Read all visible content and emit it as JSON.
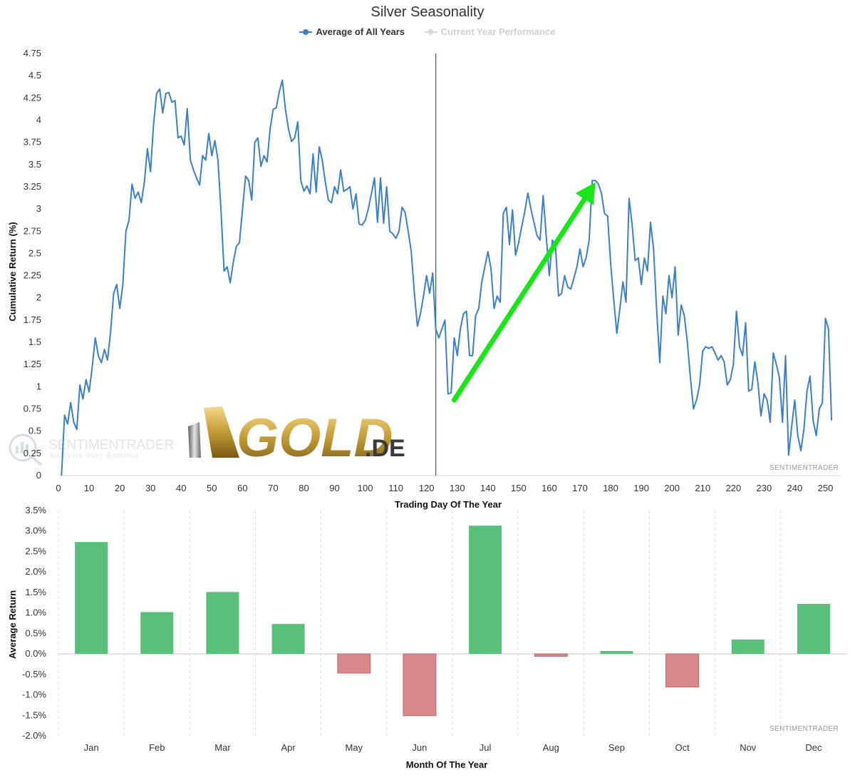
{
  "title": "Silver Seasonality",
  "legend": {
    "average": "Average of All Years",
    "current": "Current Year Performance"
  },
  "colors": {
    "line": "#3a7fc8",
    "marker": "#2e7d32",
    "arrow": "#19e619",
    "positive": "#5abf78",
    "negative": "#d98889"
  },
  "watermarks": {
    "sentimentrader_logo": "SENTIMENTRADER",
    "sentimentrader_tagline": "Analysis over Emotion",
    "gold_brand": "GOLD",
    "gold_tld": ".DE",
    "credit_top": "SENTIMENTRADER",
    "credit_bottom": "SENTIMENTRADER"
  },
  "chart_data": [
    {
      "type": "line",
      "title": "Silver Seasonality",
      "xlabel": "Trading Day Of The Year",
      "ylabel": "Cumulative Return (%)",
      "xlim": [
        0,
        255
      ],
      "ylim": [
        0,
        4.75
      ],
      "x_ticks": [
        0,
        10,
        20,
        30,
        40,
        50,
        60,
        70,
        80,
        90,
        100,
        110,
        120,
        130,
        140,
        150,
        160,
        170,
        180,
        190,
        200,
        210,
        220,
        230,
        240,
        250
      ],
      "y_ticks": [
        0,
        0.25,
        0.5,
        0.75,
        1,
        1.25,
        1.5,
        1.75,
        2,
        2.25,
        2.5,
        2.75,
        3,
        3.25,
        3.5,
        3.75,
        4,
        4.25,
        4.5,
        4.75
      ],
      "vertical_marker_x": 123,
      "arrow_annotation": {
        "from": [
          129,
          0.85
        ],
        "to": [
          175,
          3.3
        ]
      },
      "series": [
        {
          "name": "Average of All Years",
          "points": [
            [
              1,
              0.0
            ],
            [
              2,
              0.68
            ],
            [
              3,
              0.58
            ],
            [
              4,
              0.82
            ],
            [
              5,
              0.6
            ],
            [
              6,
              0.52
            ],
            [
              7,
              1.02
            ],
            [
              8,
              0.86
            ],
            [
              9,
              1.08
            ],
            [
              10,
              0.94
            ],
            [
              11,
              1.22
            ],
            [
              12,
              1.55
            ],
            [
              13,
              1.35
            ],
            [
              14,
              1.27
            ],
            [
              15,
              1.42
            ],
            [
              16,
              1.3
            ],
            [
              17,
              1.62
            ],
            [
              18,
              2.05
            ],
            [
              19,
              2.15
            ],
            [
              20,
              1.88
            ],
            [
              21,
              2.15
            ],
            [
              22,
              2.75
            ],
            [
              23,
              2.87
            ],
            [
              24,
              3.28
            ],
            [
              25,
              3.12
            ],
            [
              26,
              3.19
            ],
            [
              27,
              3.07
            ],
            [
              28,
              3.3
            ],
            [
              29,
              3.68
            ],
            [
              30,
              3.42
            ],
            [
              31,
              3.95
            ],
            [
              32,
              4.3
            ],
            [
              33,
              4.35
            ],
            [
              34,
              4.08
            ],
            [
              35,
              4.3
            ],
            [
              36,
              4.31
            ],
            [
              37,
              4.2
            ],
            [
              38,
              4.22
            ],
            [
              39,
              3.8
            ],
            [
              40,
              3.82
            ],
            [
              41,
              3.72
            ],
            [
              42,
              4.13
            ],
            [
              43,
              3.55
            ],
            [
              44,
              3.44
            ],
            [
              45,
              3.35
            ],
            [
              46,
              3.27
            ],
            [
              47,
              3.6
            ],
            [
              48,
              3.55
            ],
            [
              49,
              3.85
            ],
            [
              50,
              3.6
            ],
            [
              51,
              3.77
            ],
            [
              52,
              3.55
            ],
            [
              53,
              2.98
            ],
            [
              54,
              2.3
            ],
            [
              55,
              2.35
            ],
            [
              56,
              2.17
            ],
            [
              57,
              2.4
            ],
            [
              58,
              2.58
            ],
            [
              59,
              2.62
            ],
            [
              60,
              3.0
            ],
            [
              61,
              3.37
            ],
            [
              62,
              3.32
            ],
            [
              63,
              3.1
            ],
            [
              64,
              3.75
            ],
            [
              65,
              3.8
            ],
            [
              66,
              3.48
            ],
            [
              67,
              3.6
            ],
            [
              68,
              3.53
            ],
            [
              69,
              3.9
            ],
            [
              70,
              4.12
            ],
            [
              71,
              4.14
            ],
            [
              72,
              4.32
            ],
            [
              73,
              4.45
            ],
            [
              74,
              4.12
            ],
            [
              75,
              3.9
            ],
            [
              76,
              3.76
            ],
            [
              77,
              3.8
            ],
            [
              78,
              3.98
            ],
            [
              79,
              3.32
            ],
            [
              80,
              3.2
            ],
            [
              81,
              3.26
            ],
            [
              82,
              3.17
            ],
            [
              83,
              3.62
            ],
            [
              84,
              3.19
            ],
            [
              85,
              3.7
            ],
            [
              86,
              3.55
            ],
            [
              87,
              3.3
            ],
            [
              88,
              3.1
            ],
            [
              89,
              3.07
            ],
            [
              90,
              3.25
            ],
            [
              91,
              3.17
            ],
            [
              92,
              3.44
            ],
            [
              93,
              3.2
            ],
            [
              94,
              3.22
            ],
            [
              95,
              3.25
            ],
            [
              96,
              3.0
            ],
            [
              97,
              3.17
            ],
            [
              98,
              2.83
            ],
            [
              99,
              2.82
            ],
            [
              100,
              2.87
            ],
            [
              101,
              3.0
            ],
            [
              102,
              3.17
            ],
            [
              103,
              3.35
            ],
            [
              104,
              2.85
            ],
            [
              105,
              3.35
            ],
            [
              106,
              2.84
            ],
            [
              107,
              3.25
            ],
            [
              108,
              2.75
            ],
            [
              109,
              2.72
            ],
            [
              110,
              2.67
            ],
            [
              111,
              2.75
            ],
            [
              112,
              3.02
            ],
            [
              113,
              2.96
            ],
            [
              114,
              2.75
            ],
            [
              115,
              2.52
            ],
            [
              116,
              2.06
            ],
            [
              117,
              1.68
            ],
            [
              118,
              1.82
            ],
            [
              119,
              2.02
            ],
            [
              120,
              2.25
            ],
            [
              121,
              2.05
            ],
            [
              122,
              2.28
            ],
            [
              123,
              1.65
            ],
            [
              124,
              1.55
            ],
            [
              125,
              1.65
            ],
            [
              126,
              1.75
            ],
            [
              127,
              0.92
            ],
            [
              128,
              0.93
            ],
            [
              129,
              1.55
            ],
            [
              130,
              1.35
            ],
            [
              131,
              1.65
            ],
            [
              132,
              1.82
            ],
            [
              133,
              1.85
            ],
            [
              134,
              1.35
            ],
            [
              135,
              1.35
            ],
            [
              136,
              1.8
            ],
            [
              137,
              1.88
            ],
            [
              138,
              2.18
            ],
            [
              139,
              2.35
            ],
            [
              140,
              2.52
            ],
            [
              141,
              2.33
            ],
            [
              142,
              1.88
            ],
            [
              143,
              2.02
            ],
            [
              144,
              1.95
            ],
            [
              145,
              2.95
            ],
            [
              146,
              3.02
            ],
            [
              147,
              2.6
            ],
            [
              148,
              2.99
            ],
            [
              149,
              2.48
            ],
            [
              150,
              2.62
            ],
            [
              151,
              2.8
            ],
            [
              152,
              2.97
            ],
            [
              153,
              3.18
            ],
            [
              154,
              3.0
            ],
            [
              155,
              2.85
            ],
            [
              156,
              2.7
            ],
            [
              157,
              2.65
            ],
            [
              158,
              3.15
            ],
            [
              159,
              2.7
            ],
            [
              160,
              2.25
            ],
            [
              161,
              2.65
            ],
            [
              162,
              2.58
            ],
            [
              163,
              2.02
            ],
            [
              164,
              2.05
            ],
            [
              165,
              2.25
            ],
            [
              166,
              2.12
            ],
            [
              167,
              2.1
            ],
            [
              168,
              2.22
            ],
            [
              169,
              2.35
            ],
            [
              170,
              2.55
            ],
            [
              171,
              2.35
            ],
            [
              172,
              2.45
            ],
            [
              173,
              2.65
            ],
            [
              174,
              3.32
            ],
            [
              175,
              3.32
            ],
            [
              176,
              3.28
            ],
            [
              177,
              3.18
            ],
            [
              178,
              2.95
            ],
            [
              179,
              2.92
            ],
            [
              180,
              2.38
            ],
            [
              181,
              1.98
            ],
            [
              182,
              1.6
            ],
            [
              183,
              1.88
            ],
            [
              184,
              2.18
            ],
            [
              185,
              1.95
            ],
            [
              186,
              3.12
            ],
            [
              187,
              2.82
            ],
            [
              188,
              2.42
            ],
            [
              189,
              2.45
            ],
            [
              190,
              2.15
            ],
            [
              191,
              2.45
            ],
            [
              192,
              2.3
            ],
            [
              193,
              2.85
            ],
            [
              194,
              2.55
            ],
            [
              195,
              1.86
            ],
            [
              196,
              1.27
            ],
            [
              197,
              2.02
            ],
            [
              198,
              1.82
            ],
            [
              199,
              2.25
            ],
            [
              200,
              2.0
            ],
            [
              201,
              2.35
            ],
            [
              202,
              1.58
            ],
            [
              203,
              1.92
            ],
            [
              204,
              1.8
            ],
            [
              205,
              1.5
            ],
            [
              206,
              1.1
            ],
            [
              207,
              0.75
            ],
            [
              208,
              0.85
            ],
            [
              209,
              1.02
            ],
            [
              210,
              1.4
            ],
            [
              211,
              1.45
            ],
            [
              212,
              1.43
            ],
            [
              213,
              1.45
            ],
            [
              214,
              1.38
            ],
            [
              215,
              1.3
            ],
            [
              216,
              1.35
            ],
            [
              217,
              1.28
            ],
            [
              218,
              1.02
            ],
            [
              219,
              1.08
            ],
            [
              220,
              1.25
            ],
            [
              221,
              1.85
            ],
            [
              222,
              1.45
            ],
            [
              223,
              1.35
            ],
            [
              224,
              1.72
            ],
            [
              225,
              0.95
            ],
            [
              226,
              0.97
            ],
            [
              227,
              1.28
            ],
            [
              228,
              1.05
            ],
            [
              229,
              0.67
            ],
            [
              230,
              0.92
            ],
            [
              231,
              0.85
            ],
            [
              232,
              0.6
            ],
            [
              233,
              1.38
            ],
            [
              234,
              1.25
            ],
            [
              235,
              1.1
            ],
            [
              236,
              0.6
            ],
            [
              237,
              1.35
            ],
            [
              238,
              0.23
            ],
            [
              239,
              0.55
            ],
            [
              240,
              0.85
            ],
            [
              241,
              0.45
            ],
            [
              242,
              0.28
            ],
            [
              243,
              0.52
            ],
            [
              244,
              0.95
            ],
            [
              245,
              1.12
            ],
            [
              246,
              0.62
            ],
            [
              247,
              0.45
            ],
            [
              248,
              0.75
            ],
            [
              249,
              0.82
            ],
            [
              250,
              1.77
            ],
            [
              251,
              1.65
            ],
            [
              252,
              0.62
            ]
          ]
        },
        {
          "name": "Current Year Performance",
          "points": []
        }
      ]
    },
    {
      "type": "bar",
      "xlabel": "Month Of The Year",
      "ylabel": "Average Return",
      "ylim": [
        -2.0,
        3.5
      ],
      "y_ticks": [
        -2.0,
        -1.5,
        -1.0,
        -0.5,
        0.0,
        0.5,
        1.0,
        1.5,
        2.0,
        2.5,
        3.0,
        3.5
      ],
      "y_tick_labels": [
        "-2.0%",
        "-1.5%",
        "-1.0%",
        "-0.5%",
        "0.0%",
        "0.5%",
        "1.0%",
        "1.5%",
        "2.0%",
        "2.5%",
        "3.0%",
        "3.5%"
      ],
      "categories": [
        "Jan",
        "Feb",
        "Mar",
        "Apr",
        "May",
        "Jun",
        "Jul",
        "Aug",
        "Sep",
        "Oct",
        "Nov",
        "Dec"
      ],
      "values": [
        2.73,
        1.02,
        1.51,
        0.73,
        -0.47,
        -1.51,
        3.13,
        -0.06,
        0.07,
        -0.81,
        0.35,
        1.22
      ]
    }
  ]
}
